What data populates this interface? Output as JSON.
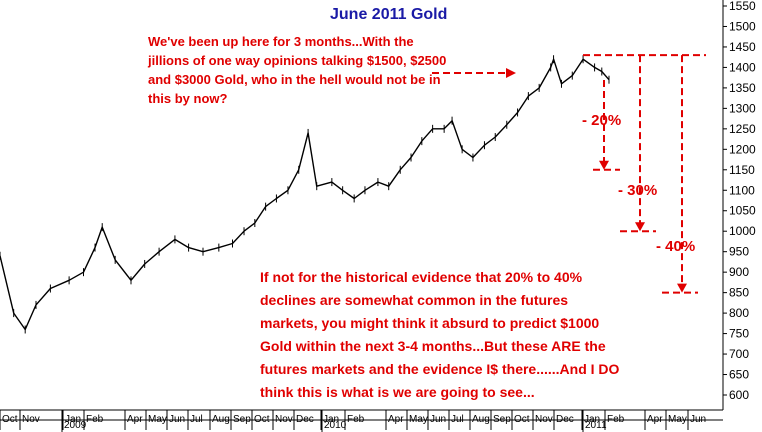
{
  "chart_data": {
    "type": "line",
    "title": "June 2011 Gold",
    "xlabel": "",
    "ylabel": "",
    "ylim": [
      550,
      1570
    ],
    "y_ticks": [
      600,
      650,
      700,
      750,
      800,
      850,
      900,
      950,
      1000,
      1050,
      1100,
      1150,
      1200,
      1250,
      1300,
      1350,
      1400,
      1450,
      1500,
      1550
    ],
    "x_ticks": [
      "Oct",
      "Nov",
      "Jan",
      "Feb",
      "Apr",
      "May",
      "Jun",
      "Jul",
      "Aug",
      "Sep",
      "Oct",
      "Nov",
      "Dec",
      "Jan",
      "Feb",
      "Apr",
      "May",
      "Jun",
      "Jul",
      "Aug",
      "Sep",
      "Oct",
      "Nov",
      "Dec",
      "Jan",
      "Feb",
      "Apr",
      "May",
      "Jun"
    ],
    "year_labels": [
      "2009",
      "2010",
      "2011"
    ],
    "grid": false,
    "series": [
      {
        "x": [
          "2008-10-01",
          "2008-10-20",
          "2008-11-05",
          "2008-11-20",
          "2008-12-10",
          "2009-01-05",
          "2009-01-25",
          "2009-02-10",
          "2009-02-20",
          "2009-03-10",
          "2009-04-01",
          "2009-04-20",
          "2009-05-10",
          "2009-06-01",
          "2009-06-20",
          "2009-07-10",
          "2009-08-01",
          "2009-08-20",
          "2009-09-05",
          "2009-09-20",
          "2009-10-05",
          "2009-10-20",
          "2009-11-05",
          "2009-11-20",
          "2009-12-03",
          "2009-12-15",
          "2010-01-05",
          "2010-01-20",
          "2010-02-05",
          "2010-02-20",
          "2010-03-10",
          "2010-03-25",
          "2010-04-10",
          "2010-04-25",
          "2010-05-10",
          "2010-05-25",
          "2010-06-10",
          "2010-06-21",
          "2010-07-05",
          "2010-07-20",
          "2010-08-05",
          "2010-08-20",
          "2010-09-05",
          "2010-09-20",
          "2010-10-05",
          "2010-10-20",
          "2010-11-05",
          "2010-11-09",
          "2010-11-20",
          "2010-12-05",
          "2010-12-20",
          "2011-01-05",
          "2011-01-15",
          "2011-01-25"
        ],
        "y": [
          940,
          800,
          760,
          820,
          860,
          880,
          900,
          960,
          1010,
          930,
          880,
          920,
          950,
          980,
          960,
          950,
          960,
          970,
          1000,
          1020,
          1060,
          1080,
          1100,
          1150,
          1240,
          1110,
          1120,
          1100,
          1080,
          1100,
          1120,
          1110,
          1150,
          1180,
          1220,
          1250,
          1250,
          1270,
          1200,
          1180,
          1210,
          1230,
          1260,
          1290,
          1330,
          1350,
          1400,
          1420,
          1360,
          1380,
          1420,
          1400,
          1390,
          1370
        ]
      }
    ],
    "reference_lines": [
      {
        "y": 1430
      },
      {
        "y": 1150,
        "label": "- 20%"
      },
      {
        "y": 1000,
        "label": "- 30%"
      },
      {
        "y": 850,
        "label": "- 40%"
      }
    ]
  },
  "annotations": {
    "top_note": "We've been up here for 3 months...With the jillions of one way opinions talking $1500, $2500 and $3000 Gold, who in the hell would not be in this by now?",
    "bottom_note": "If not for the historical evidence that 20% to 40% declines are somewhat common in the futures markets, you might think it absurd to predict $1000 Gold within the next 3-4 months...But these ARE the futures markets and the evidence I$ there......And I DO think this is what is we are going to see..."
  },
  "colors": {
    "price": "#000000",
    "annotation": "#e00000",
    "title": "#1a1aa6",
    "axis": "#000000"
  }
}
